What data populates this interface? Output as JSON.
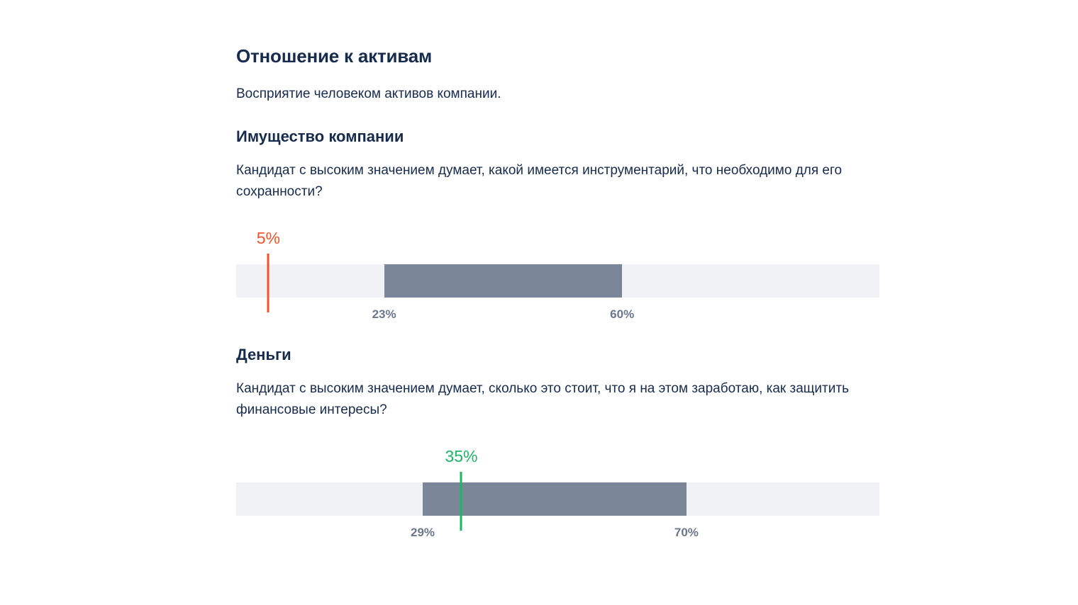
{
  "header": {
    "title": "Отношение к активам",
    "subtitle": "Восприятие человеком активов компании."
  },
  "colors": {
    "low": "#f5532d",
    "ok": "#1fb464",
    "range": "#7b8799",
    "track": "#f1f2f5"
  },
  "sections": [
    {
      "title": "Имущество компании",
      "description": "Кандидат с высоким значением думает, какой имеется инструментарий, что необходимо для его сохранности?",
      "range_low_label": "23%",
      "range_high_label": "60%",
      "value_label": "5%",
      "value_color": "#f5532d"
    },
    {
      "title": "Деньги",
      "description": "Кандидат с высоким значением думает, сколько это стоит, что я на этом заработаю, как защитить финансовые интересы?",
      "range_low_label": "29%",
      "range_high_label": "70%",
      "value_label": "35%",
      "value_color": "#1fb464"
    }
  ],
  "chart_data": [
    {
      "type": "bar",
      "title": "Имущество компании",
      "xlim": [
        0,
        100
      ],
      "unit": "%",
      "range": [
        23,
        60
      ],
      "value": 5
    },
    {
      "type": "bar",
      "title": "Деньги",
      "xlim": [
        0,
        100
      ],
      "unit": "%",
      "range": [
        29,
        70
      ],
      "value": 35
    }
  ]
}
